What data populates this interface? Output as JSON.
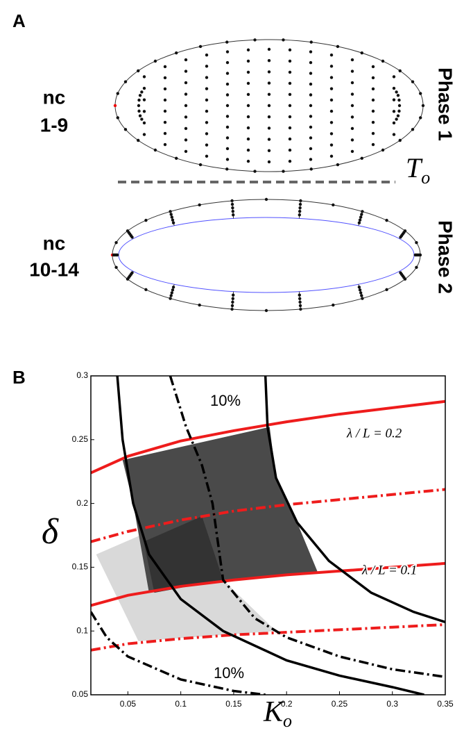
{
  "panel_a": {
    "label": "A",
    "top_stage_line1": "nc",
    "top_stage_line2": "1-9",
    "top_phase": "Phase 1",
    "threshold_label": "T",
    "threshold_sub": "o",
    "bottom_stage_line1": "nc",
    "bottom_stage_line2": "10-14",
    "bottom_phase": "Phase 2"
  },
  "panel_b_label": "B",
  "chart_data": {
    "type": "line",
    "xlabel": "K",
    "xlabel_sub": "o",
    "ylabel": "δ",
    "xlim": [
      0.015,
      0.35
    ],
    "ylim": [
      0.05,
      0.3
    ],
    "xticks": [
      0.05,
      0.1,
      0.15,
      0.2,
      0.25,
      0.3,
      0.35
    ],
    "yticks": [
      0.05,
      0.1,
      0.15,
      0.2,
      0.25,
      0.3
    ],
    "annotations": [
      "10%",
      "10%",
      "λ / L = 0.2",
      "λ / L = 0.1"
    ],
    "regions": [
      {
        "color": "#d9d9d9",
        "x": [
          0.02,
          0.07,
          0.075,
          0.14,
          0.19,
          0.06
        ],
        "values": [
          0.16,
          0.178,
          0.13,
          0.14,
          0.1,
          0.092
        ]
      },
      {
        "color": "#4a4a4a",
        "x": [
          0.045,
          0.184,
          0.19,
          0.21,
          0.23,
          0.14,
          0.07,
          0.055
        ],
        "values": [
          0.234,
          0.26,
          0.22,
          0.185,
          0.145,
          0.14,
          0.13,
          0.2
        ]
      },
      {
        "color": "#333333",
        "x": [
          0.065,
          0.12,
          0.14,
          0.075
        ],
        "values": [
          0.17,
          0.19,
          0.14,
          0.13
        ]
      }
    ],
    "series": [
      {
        "color": "#ee1c1c",
        "style": "solid",
        "x": [
          0.015,
          0.05,
          0.1,
          0.15,
          0.2,
          0.25,
          0.3,
          0.35
        ],
        "values": [
          0.224,
          0.237,
          0.249,
          0.257,
          0.264,
          0.27,
          0.275,
          0.28
        ]
      },
      {
        "color": "#ee1c1c",
        "style": "dashdot",
        "x": [
          0.015,
          0.05,
          0.1,
          0.15,
          0.2,
          0.25,
          0.3,
          0.35
        ],
        "values": [
          0.17,
          0.178,
          0.187,
          0.194,
          0.199,
          0.203,
          0.207,
          0.211
        ]
      },
      {
        "color": "#ee1c1c",
        "style": "solid",
        "x": [
          0.015,
          0.05,
          0.1,
          0.15,
          0.2,
          0.25,
          0.3,
          0.35
        ],
        "values": [
          0.12,
          0.128,
          0.135,
          0.14,
          0.144,
          0.147,
          0.15,
          0.153
        ]
      },
      {
        "color": "#ee1c1c",
        "style": "dashdot",
        "x": [
          0.015,
          0.05,
          0.1,
          0.15,
          0.2,
          0.25,
          0.3,
          0.35
        ],
        "values": [
          0.085,
          0.09,
          0.094,
          0.097,
          0.099,
          0.101,
          0.103,
          0.105
        ]
      },
      {
        "color": "#000000",
        "style": "solid",
        "x": [
          0.04,
          0.045,
          0.055,
          0.07,
          0.1,
          0.14,
          0.2,
          0.25,
          0.3,
          0.33
        ],
        "values": [
          0.3,
          0.25,
          0.2,
          0.16,
          0.125,
          0.1,
          0.077,
          0.065,
          0.056,
          0.05
        ]
      },
      {
        "color": "#000000",
        "style": "solid",
        "x": [
          0.18,
          0.182,
          0.19,
          0.21,
          0.24,
          0.28,
          0.32,
          0.35
        ],
        "values": [
          0.3,
          0.26,
          0.22,
          0.185,
          0.155,
          0.13,
          0.115,
          0.107
        ]
      },
      {
        "color": "#000000",
        "style": "dashdot",
        "x": [
          0.09,
          0.105,
          0.12,
          0.13,
          0.14,
          0.17,
          0.2,
          0.25,
          0.3,
          0.35
        ],
        "values": [
          0.3,
          0.26,
          0.23,
          0.2,
          0.14,
          0.11,
          0.095,
          0.08,
          0.07,
          0.064
        ]
      },
      {
        "color": "#000000",
        "style": "dashdot",
        "x": [
          0.015,
          0.03,
          0.05,
          0.1,
          0.15,
          0.18
        ],
        "values": [
          0.115,
          0.095,
          0.08,
          0.062,
          0.053,
          0.05
        ]
      }
    ]
  }
}
